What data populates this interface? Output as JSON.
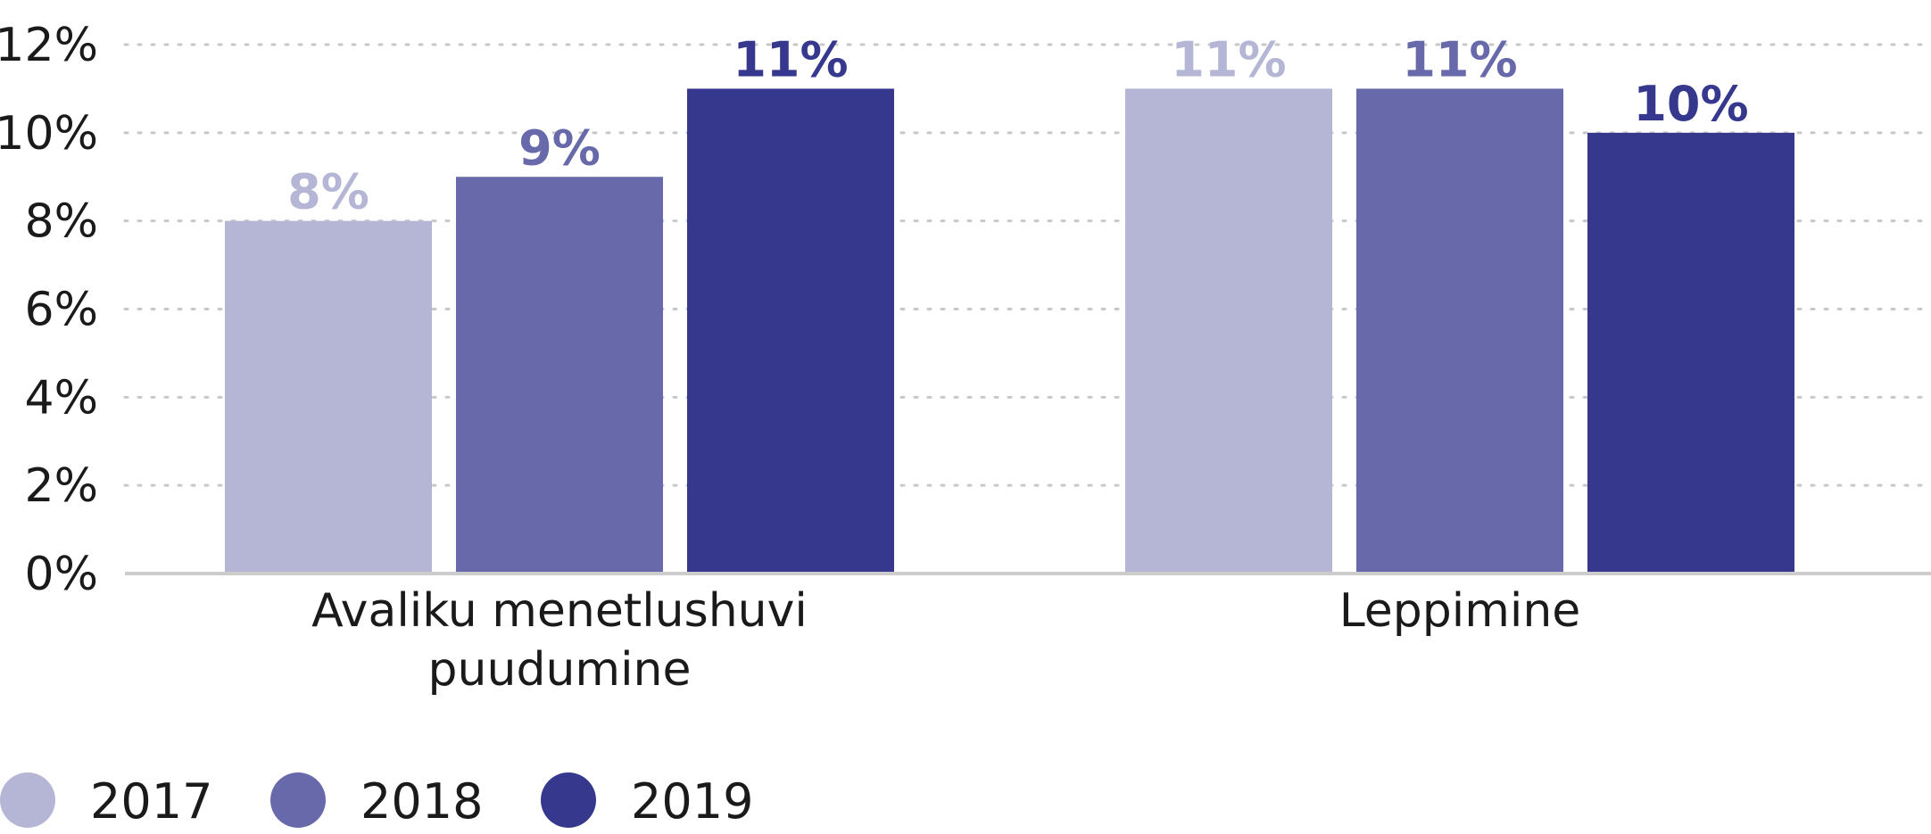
{
  "chart_data": {
    "type": "bar",
    "categories": [
      "Avaliku menetlushuvi puudumine",
      "Leppimine"
    ],
    "category_lines": [
      [
        "Avaliku menetlushuvi",
        "puudumine"
      ],
      [
        "Leppimine"
      ]
    ],
    "series": [
      {
        "name": "2017",
        "values": [
          8,
          11
        ],
        "labels": [
          "8%",
          "11%"
        ],
        "color": "#b5b6d5"
      },
      {
        "name": "2018",
        "values": [
          9,
          11
        ],
        "labels": [
          "9%",
          "11%"
        ],
        "color": "#6769aa"
      },
      {
        "name": "2019",
        "values": [
          11,
          10
        ],
        "labels": [
          "11%",
          "10%"
        ],
        "color": "#36388e"
      }
    ],
    "ylim": [
      0,
      12
    ],
    "yticks": [
      0,
      2,
      4,
      6,
      8,
      10,
      12
    ],
    "ytick_labels": [
      "0%",
      "2%",
      "4%",
      "6%",
      "8%",
      "10%",
      "12%"
    ],
    "grid": true,
    "legend": "bottom-left"
  }
}
